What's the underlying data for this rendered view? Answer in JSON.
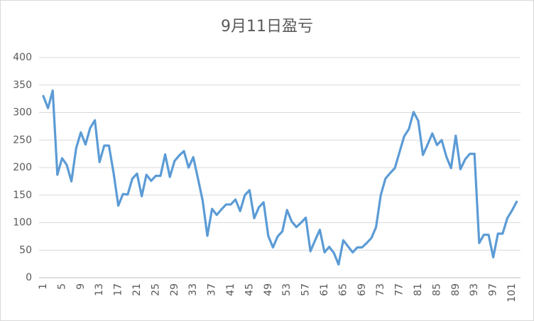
{
  "chart_data": {
    "type": "line",
    "title": "9月11日盈亏",
    "categories": [
      "1",
      null,
      null,
      null,
      "5",
      null,
      null,
      null,
      "9",
      null,
      null,
      null,
      "13",
      null,
      null,
      null,
      "17",
      null,
      null,
      null,
      "21",
      null,
      null,
      null,
      "25",
      null,
      null,
      null,
      "29",
      null,
      null,
      null,
      "33",
      null,
      null,
      null,
      "37",
      null,
      null,
      null,
      "41",
      null,
      null,
      null,
      "45",
      null,
      null,
      null,
      "49",
      null,
      null,
      null,
      "53",
      null,
      null,
      null,
      "57",
      null,
      null,
      null,
      "61",
      null,
      null,
      null,
      "65",
      null,
      null,
      null,
      "69",
      null,
      null,
      null,
      "73",
      null,
      null,
      null,
      "77",
      null,
      null,
      null,
      "81",
      null,
      null,
      null,
      "85",
      null,
      null,
      null,
      "89",
      null,
      null,
      null,
      "93",
      null,
      null,
      null,
      "97",
      null,
      null,
      null,
      "101",
      null
    ],
    "series": [
      {
        "color": "#5b9bd5",
        "values": [
          330,
          308,
          340,
          187,
          217,
          205,
          175,
          235,
          264,
          242,
          272,
          286,
          210,
          240,
          240,
          190,
          131,
          152,
          151,
          180,
          189,
          148,
          187,
          176,
          185,
          185,
          224,
          183,
          212,
          222,
          230,
          200,
          219,
          180,
          140,
          76,
          125,
          114,
          124,
          133,
          133,
          142,
          121,
          150,
          159,
          108,
          128,
          137,
          76,
          55,
          75,
          84,
          123,
          102,
          92,
          100,
          109,
          48,
          68,
          87,
          46,
          56,
          45,
          24,
          68,
          57,
          46,
          55,
          55,
          63,
          72,
          92,
          150,
          180,
          190,
          199,
          228,
          257,
          270,
          301,
          285,
          223,
          242,
          262,
          241,
          250,
          220,
          199,
          258,
          197,
          215,
          225,
          225,
          63,
          78,
          78,
          37,
          80,
          80,
          108,
          122,
          138
        ]
      }
    ],
    "ylim": [
      0,
      400
    ],
    "yticks": [
      0,
      50,
      100,
      150,
      200,
      250,
      300,
      350,
      400
    ],
    "grid": true
  }
}
